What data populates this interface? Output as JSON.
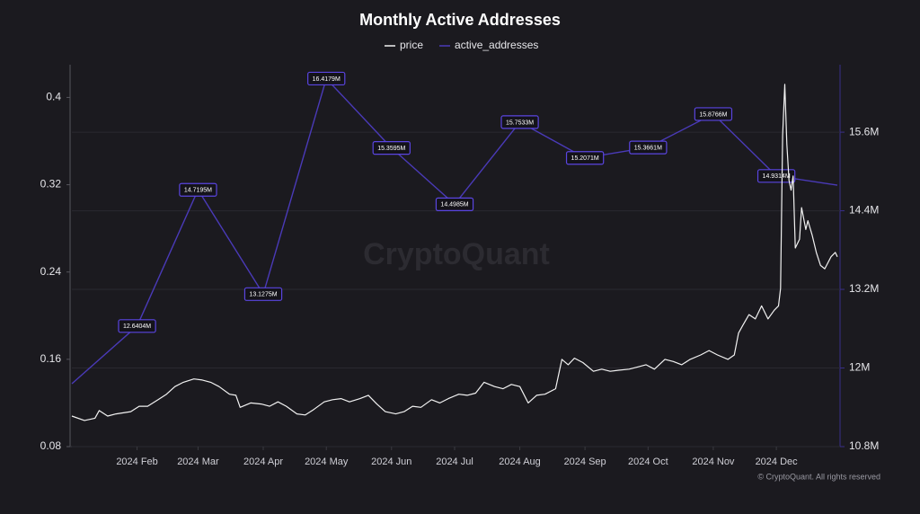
{
  "chart_data": {
    "type": "line",
    "title": "Monthly Active Addresses",
    "watermark": "CryptoQuant",
    "footer": "© CryptoQuant. All rights reserved",
    "xlim": [
      0,
      364
    ],
    "xticks": [
      {
        "value": 31,
        "label": "2024 Feb"
      },
      {
        "value": 60,
        "label": "2024 Mar"
      },
      {
        "value": 91,
        "label": "2024 Apr"
      },
      {
        "value": 121,
        "label": "2024 May"
      },
      {
        "value": 152,
        "label": "2024 Jun"
      },
      {
        "value": 182,
        "label": "2024 Jul"
      },
      {
        "value": 213,
        "label": "2024 Aug"
      },
      {
        "value": 244,
        "label": "2024 Sep"
      },
      {
        "value": 274,
        "label": "2024 Oct"
      },
      {
        "value": 305,
        "label": "2024 Nov"
      },
      {
        "value": 335,
        "label": "2024 Dec"
      }
    ],
    "ylim": [
      0.08,
      0.43
    ],
    "yticks": [
      0.08,
      0.16,
      0.24,
      0.32,
      0.4
    ],
    "y2lim": [
      10800000,
      16630000
    ],
    "y2ticks": [
      {
        "value": 10800000,
        "label": "10.8M"
      },
      {
        "value": 12000000,
        "label": "12M"
      },
      {
        "value": 13200000,
        "label": "13.2M"
      },
      {
        "value": 14400000,
        "label": "14.4M"
      },
      {
        "value": 15600000,
        "label": "15.6M"
      }
    ],
    "grid": true,
    "legend": "top",
    "series": [
      {
        "name": "price",
        "color": "#f2f2f2",
        "axis": "y",
        "x": [
          0,
          6,
          11,
          13,
          17,
          21,
          28,
          32,
          36,
          41,
          45,
          49,
          53,
          58,
          62,
          66,
          70,
          75,
          78,
          80,
          85,
          90,
          94,
          98,
          102,
          107,
          111,
          115,
          120,
          124,
          128,
          132,
          137,
          141,
          145,
          149,
          154,
          158,
          162,
          166,
          171,
          175,
          179,
          184,
          188,
          192,
          196,
          201,
          205,
          209,
          213,
          217,
          221,
          225,
          230,
          233,
          236,
          239,
          243,
          248,
          252,
          256,
          260,
          265,
          269,
          273,
          277,
          282,
          286,
          290,
          294,
          299,
          303,
          307,
          312,
          315,
          317,
          319,
          322,
          325,
          328,
          331,
          334,
          336,
          337,
          338,
          339,
          340,
          341,
          342,
          343,
          344,
          346,
          347,
          349,
          350,
          352,
          354,
          356,
          358,
          361,
          363,
          364
        ],
        "values": [
          0.108,
          0.104,
          0.106,
          0.113,
          0.108,
          0.11,
          0.112,
          0.117,
          0.117,
          0.123,
          0.128,
          0.135,
          0.139,
          0.142,
          0.141,
          0.139,
          0.135,
          0.128,
          0.127,
          0.116,
          0.12,
          0.119,
          0.117,
          0.121,
          0.117,
          0.11,
          0.109,
          0.114,
          0.121,
          0.123,
          0.124,
          0.121,
          0.124,
          0.127,
          0.119,
          0.112,
          0.11,
          0.112,
          0.117,
          0.116,
          0.123,
          0.12,
          0.124,
          0.128,
          0.127,
          0.129,
          0.139,
          0.135,
          0.133,
          0.137,
          0.135,
          0.12,
          0.127,
          0.128,
          0.133,
          0.16,
          0.155,
          0.161,
          0.157,
          0.149,
          0.151,
          0.149,
          0.15,
          0.151,
          0.153,
          0.155,
          0.151,
          0.16,
          0.158,
          0.155,
          0.16,
          0.164,
          0.168,
          0.164,
          0.16,
          0.164,
          0.184,
          0.191,
          0.201,
          0.197,
          0.209,
          0.197,
          0.205,
          0.209,
          0.225,
          0.365,
          0.412,
          0.357,
          0.324,
          0.315,
          0.328,
          0.262,
          0.27,
          0.299,
          0.279,
          0.287,
          0.274,
          0.258,
          0.246,
          0.243,
          0.254,
          0.258,
          0.254
        ]
      },
      {
        "name": "active_addresses",
        "color": "#4a3ab8",
        "axis": "y2",
        "x": [
          0,
          31,
          60,
          91,
          121,
          152,
          182,
          213,
          244,
          274,
          305,
          335,
          364
        ],
        "values": [
          11760000,
          12640400,
          14719500,
          13127500,
          16417900,
          15359500,
          14498500,
          15753300,
          15207100,
          15366100,
          15876600,
          14931400,
          14790000
        ],
        "value_labels": [
          null,
          "12.6404M",
          "14.7195M",
          "13.1275M",
          "16.4179M",
          "15.3595M",
          "14.4985M",
          "15.7533M",
          "15.2071M",
          "15.3661M",
          "15.8766M",
          "14.9314M",
          null
        ]
      }
    ]
  }
}
